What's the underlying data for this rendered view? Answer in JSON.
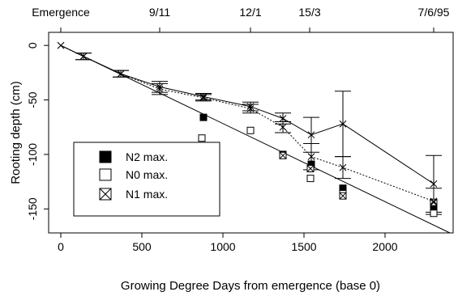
{
  "chart_data": {
    "type": "scatter",
    "xlabel": "Growing Degree Days from emergence (base 0)",
    "ylabel": "Rooting depth (cm)",
    "xlim": [
      -75,
      2420
    ],
    "ylim": [
      -172,
      12
    ],
    "x_ticks": [
      0,
      500,
      1000,
      1500,
      2000
    ],
    "y_ticks": [
      0,
      -50,
      -100,
      -150
    ],
    "top_axis": [
      {
        "label": "Emergence",
        "x": 0
      },
      {
        "label": "9/11",
        "x": 610
      },
      {
        "label": "12/1",
        "x": 1170
      },
      {
        "label": "15/3",
        "x": 1535
      },
      {
        "label": "7/6/95",
        "x": 2300
      }
    ],
    "legend": {
      "placement": "bottom-left",
      "entries": [
        {
          "series": "N2",
          "label": "N2 max."
        },
        {
          "series": "N0",
          "label": "N0 max."
        },
        {
          "series": "N1",
          "label": "N1 max."
        }
      ]
    },
    "series": [
      {
        "id": "N2",
        "marker": "filled-square",
        "points": [
          [
            880,
            -66
          ],
          [
            1370,
            -100
          ],
          [
            1545,
            -109
          ],
          [
            1740,
            -131
          ],
          [
            2300,
            -148
          ]
        ]
      },
      {
        "id": "N0",
        "marker": "open-square",
        "points": [
          [
            870,
            -85
          ],
          [
            1170,
            -78
          ],
          [
            1540,
            -122
          ],
          [
            1740,
            -136
          ],
          [
            2300,
            -154
          ]
        ]
      },
      {
        "id": "N1",
        "marker": "crossed-square",
        "points": [
          [
            1370,
            -101
          ],
          [
            1540,
            -113
          ],
          [
            1740,
            -138
          ],
          [
            2300,
            -144
          ]
        ]
      },
      {
        "id": "mean1",
        "marker": "x",
        "line": "solid",
        "points": [
          [
            0,
            0
          ],
          [
            140,
            -10
          ],
          [
            370,
            -26
          ],
          [
            610,
            -38
          ],
          [
            880,
            -47
          ],
          [
            1170,
            -56
          ],
          [
            1370,
            -67
          ],
          [
            1545,
            -82
          ],
          [
            1740,
            -72
          ],
          [
            2300,
            -127
          ]
        ],
        "error": [
          0,
          3,
          3,
          5,
          3,
          4,
          5,
          16,
          30,
          26
        ]
      },
      {
        "id": "mean2",
        "marker": "x",
        "line": "dotted",
        "points": [
          [
            0,
            0
          ],
          [
            140,
            -10
          ],
          [
            370,
            -26
          ],
          [
            610,
            -40
          ],
          [
            880,
            -48
          ],
          [
            1170,
            -58
          ],
          [
            1370,
            -75
          ],
          [
            1545,
            -102
          ],
          [
            1740,
            -112
          ],
          [
            2300,
            -143
          ]
        ],
        "error": [
          0,
          3,
          3,
          5,
          3,
          4,
          5,
          12,
          10,
          12
        ]
      }
    ],
    "reference_line": {
      "x": [
        0,
        2400
      ],
      "y": [
        0,
        -172
      ]
    }
  }
}
